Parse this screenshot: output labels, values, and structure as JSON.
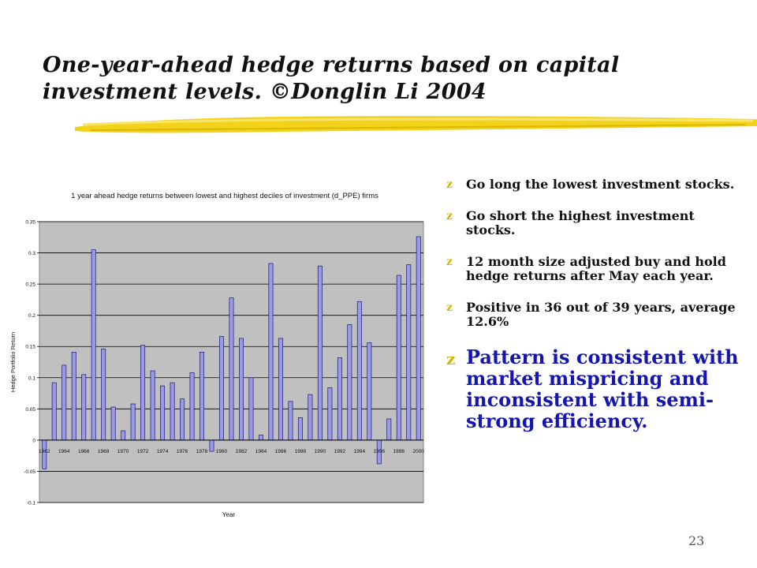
{
  "slide": {
    "title": "One-year-ahead hedge returns based on capital investment levels. ©Donglin Li 2004",
    "page_number": "23",
    "bullet_marker": "z",
    "bullets": [
      "Go long the lowest investment stocks.",
      "Go short the highest investment stocks.",
      "12 month size adjusted buy and hold hedge returns after May each year.",
      "Positive in 36 out of 39 years, average 12.6%",
      "Pattern is consistent with market mispricing and inconsistent with semi-strong efficiency."
    ],
    "colors": {
      "title_stroke": "#f2d21b",
      "bullet_marker": "#d4b600",
      "emphasis_text": "#1515b0"
    }
  },
  "chart_data": {
    "type": "bar",
    "title": "1 year ahead hedge returns between lowest and highest deciles of investment (d_PPE) firms",
    "xlabel": "Year",
    "ylabel": "Hedge Portfolio Return",
    "ylim": [
      -0.1,
      0.35
    ],
    "yticks": [
      "-0.1",
      "-0.05",
      "0",
      "0.05",
      "0.1",
      "0.15",
      "0.2",
      "0.25",
      "0.3",
      "0.35"
    ],
    "xtick_labels": [
      "1962",
      "1964",
      "1966",
      "1968",
      "1970",
      "1972",
      "1974",
      "1976",
      "1978",
      "1980",
      "1982",
      "1984",
      "1986",
      "1988",
      "1990",
      "1992",
      "1994",
      "1996",
      "1998",
      "2000"
    ],
    "categories": [
      1962,
      1963,
      1964,
      1965,
      1966,
      1967,
      1968,
      1969,
      1970,
      1971,
      1972,
      1973,
      1974,
      1975,
      1976,
      1977,
      1978,
      1979,
      1980,
      1981,
      1982,
      1983,
      1984,
      1985,
      1986,
      1987,
      1988,
      1989,
      1990,
      1991,
      1992,
      1993,
      1994,
      1995,
      1996,
      1997,
      1998,
      1999,
      2000
    ],
    "values": [
      -0.046,
      0.092,
      0.12,
      0.141,
      0.105,
      0.305,
      0.146,
      0.053,
      0.015,
      0.058,
      0.152,
      0.111,
      0.087,
      0.092,
      0.066,
      0.108,
      0.141,
      -0.018,
      0.166,
      0.228,
      0.163,
      0.1,
      0.008,
      0.283,
      0.163,
      0.062,
      0.036,
      0.073,
      0.279,
      0.084,
      0.132,
      0.185,
      0.222,
      0.156,
      -0.038,
      0.034,
      0.264,
      0.281,
      0.326
    ],
    "grid": true,
    "colors": {
      "bar_fill": "#9a9ae8",
      "bar_stroke": "#1a1a6e",
      "plot_background": "#c0c0c0"
    }
  }
}
